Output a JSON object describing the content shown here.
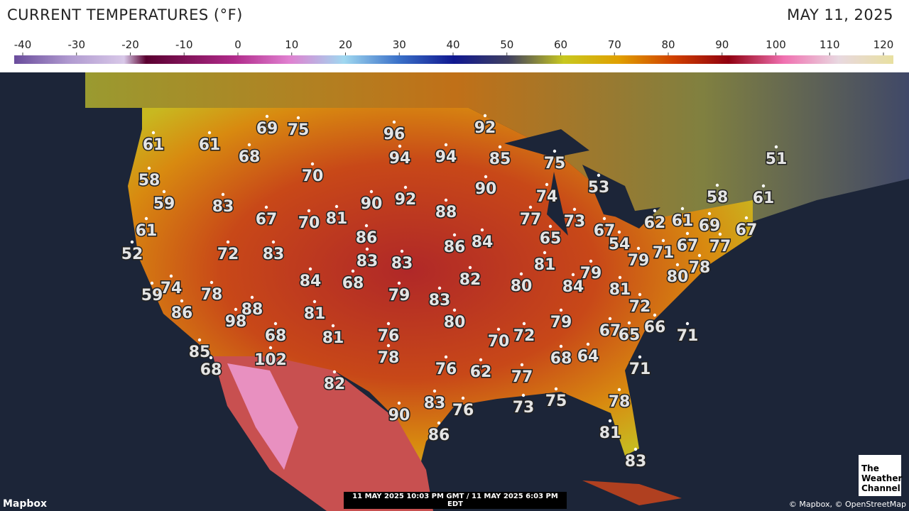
{
  "header": {
    "title": "CURRENT TEMPERATURES (°F)",
    "date": "MAY 11, 2025"
  },
  "legend": {
    "ticks": [
      -40,
      -30,
      -20,
      -10,
      0,
      10,
      20,
      30,
      40,
      50,
      60,
      70,
      80,
      90,
      100,
      110,
      120
    ]
  },
  "map": {
    "temperatures": [
      61,
      61,
      69,
      75,
      68,
      96,
      94,
      94,
      92,
      85,
      75,
      58,
      70,
      90,
      74,
      53,
      51,
      58,
      61,
      59,
      83,
      90,
      92,
      88,
      67,
      70,
      81,
      77,
      73,
      65,
      67,
      62,
      61,
      69,
      67,
      61,
      86,
      86,
      84,
      54,
      67,
      77,
      71,
      52,
      72,
      83,
      83,
      83,
      79,
      81,
      79,
      78,
      80,
      74,
      84,
      68,
      82,
      80,
      84,
      81,
      59,
      78,
      79,
      83,
      72,
      86,
      88,
      98,
      81,
      80,
      79,
      67,
      65,
      66,
      71,
      68,
      81,
      76,
      72,
      70,
      85,
      78,
      68,
      64,
      102,
      68,
      76,
      62,
      71,
      77,
      82,
      83,
      76,
      73,
      75,
      78,
      90,
      86,
      81,
      83
    ]
  },
  "footer": {
    "brand": "Mapbox",
    "timestamp": "11 MAY 2025 10:03 PM GMT / 11 MAY 2025 6:03 PM EDT",
    "attribution": "© Mapbox, © OpenStreetMap",
    "logo": [
      "The",
      "Weather",
      "Channel"
    ]
  }
}
